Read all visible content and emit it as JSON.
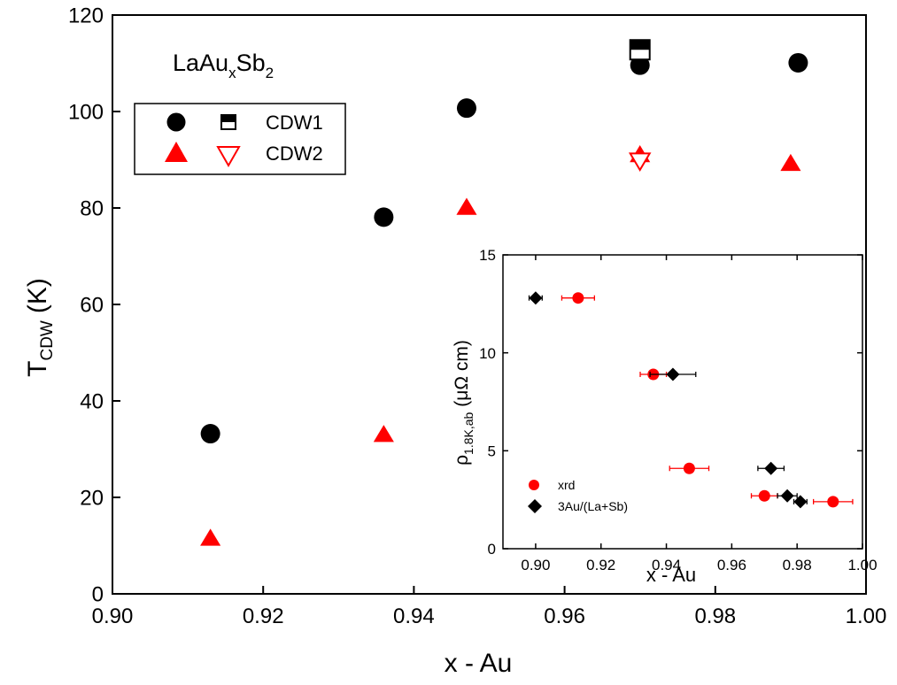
{
  "chart_data": [
    {
      "type": "scatter",
      "xlabel": "x - Au",
      "ylabel_main": "T",
      "ylabel_sub": "CDW",
      "ylabel_unit": "(K)",
      "xlim": [
        0.9,
        1.0
      ],
      "ylim": [
        0,
        120
      ],
      "x_ticks": [
        "0.90",
        "0.92",
        "0.94",
        "0.96",
        "0.98",
        "1.00"
      ],
      "y_ticks": [
        "0",
        "20",
        "40",
        "60",
        "80",
        "100",
        "120"
      ],
      "annotation": {
        "base1": "LaAu",
        "sub1": "x",
        "base2": "Sb",
        "sub2": "2"
      },
      "legend": {
        "placement": "upper-left",
        "cdw1": "CDW1",
        "cdw2": "CDW2"
      },
      "series": [
        {
          "name": "CDW1",
          "marker": "circle-filled",
          "color": "#000000",
          "points": [
            [
              0.913,
              33.2
            ],
            [
              0.936,
              78.1
            ],
            [
              0.947,
              100.7
            ],
            [
              0.97,
              109.6
            ],
            [
              0.991,
              110.1
            ]
          ]
        },
        {
          "name": "CDW1",
          "marker": "square-half-filled",
          "color": "#000000",
          "points": [
            [
              0.97,
              112.8
            ]
          ]
        },
        {
          "name": "CDW2",
          "marker": "triangle-up-filled",
          "color": "#ff0000",
          "points": [
            [
              0.913,
              11.5
            ],
            [
              0.936,
              33.0
            ],
            [
              0.947,
              80.1
            ],
            [
              0.97,
              91.0
            ],
            [
              0.99,
              89.2
            ]
          ]
        },
        {
          "name": "CDW2",
          "marker": "triangle-down-open",
          "color": "#ff0000",
          "points": [
            [
              0.97,
              89.9
            ]
          ]
        }
      ]
    },
    {
      "type": "scatter",
      "inset": true,
      "xlabel": "x - Au",
      "ylabel_rho": "ρ",
      "ylabel_sub": "1.8K,ab",
      "ylabel_unit": "(μΩ cm)",
      "xlim": [
        0.89,
        1.0
      ],
      "ylim": [
        0,
        15
      ],
      "x_ticks": [
        "0.90",
        "0.92",
        "0.94",
        "0.96",
        "0.98",
        "1.00"
      ],
      "y_ticks": [
        "0",
        "5",
        "10",
        "15"
      ],
      "legend": {
        "placement": "lower-left"
      },
      "series": [
        {
          "name": "xrd",
          "marker": "circle-filled",
          "color": "#ff0000",
          "points": [
            [
              0.913,
              12.8,
              0.005
            ],
            [
              0.936,
              8.9,
              0.004
            ],
            [
              0.947,
              4.1,
              0.006
            ],
            [
              0.97,
              2.7,
              0.004
            ],
            [
              0.991,
              2.4,
              0.006
            ]
          ]
        },
        {
          "name": "3Au/(La+Sb)",
          "marker": "diamond-filled",
          "color": "#000000",
          "points": [
            [
              0.9,
              12.8,
              0.002
            ],
            [
              0.942,
              8.9,
              0.007
            ],
            [
              0.972,
              4.1,
              0.004
            ],
            [
              0.977,
              2.7,
              0.003
            ],
            [
              0.981,
              2.4,
              0.002
            ]
          ]
        }
      ]
    }
  ]
}
